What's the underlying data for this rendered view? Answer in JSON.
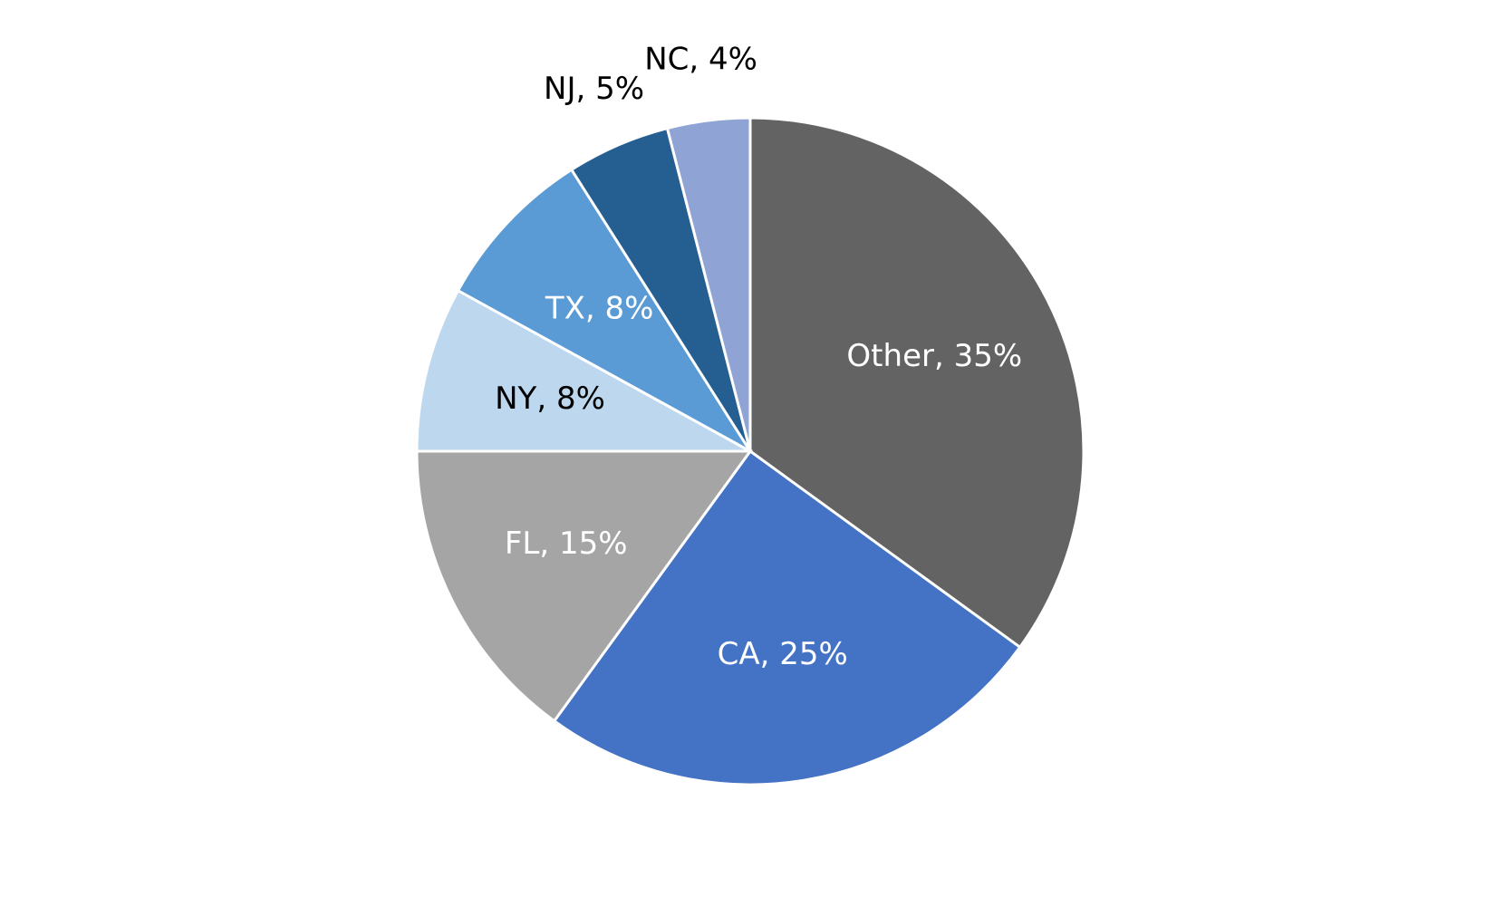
{
  "chart_data": {
    "type": "pie",
    "values": [
      35,
      25,
      15,
      8,
      8,
      5,
      4
    ],
    "value_labels": [
      "Other, 35%",
      "CA, 25%",
      "FL, 15%",
      "NY, 8%",
      "TX, 8%",
      "NJ, 5%",
      "NC, 4%"
    ],
    "colors": [
      "#636363",
      "#4472c4",
      "#a5a5a5",
      "#bdd7ee",
      "#5b9bd5",
      "#255e91",
      "#8fa4d4"
    ],
    "label_colors": [
      "#ffffff",
      "#ffffff",
      "#ffffff",
      "#000000",
      "#ffffff",
      "#000000",
      "#000000"
    ]
  }
}
